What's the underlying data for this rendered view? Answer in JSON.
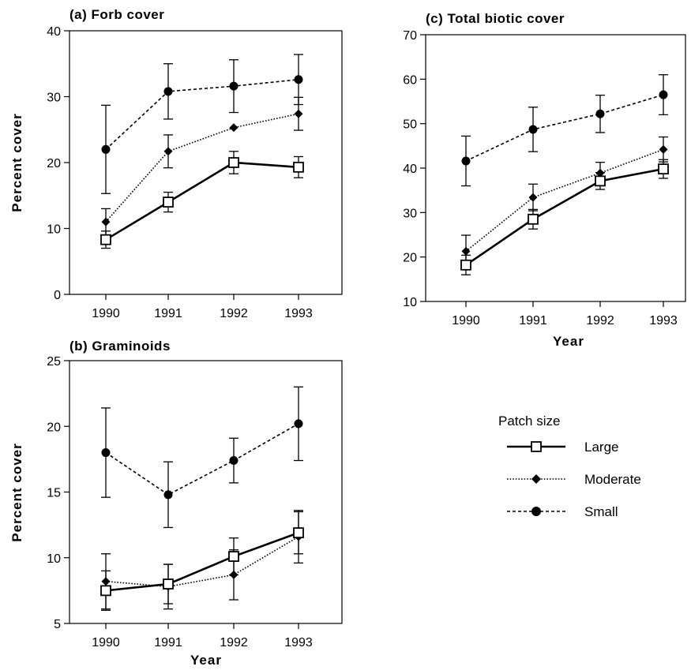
{
  "chart_data": [
    {
      "type": "line",
      "title": "(a) Forb cover",
      "xlabel": "",
      "ylabel": "Percent cover",
      "categories": [
        "1990",
        "1991",
        "1992",
        "1993"
      ],
      "ylim": [
        0,
        40
      ],
      "yticks": [
        0,
        10,
        20,
        30,
        40
      ],
      "series": [
        {
          "name": "Large",
          "values": [
            8.3,
            14.0,
            20.0,
            19.3
          ],
          "err": [
            1.3,
            1.5,
            1.7,
            1.6
          ]
        },
        {
          "name": "Moderate",
          "values": [
            11.0,
            21.7,
            25.3,
            27.4
          ],
          "err": [
            2.0,
            2.5,
            0.0,
            2.5
          ]
        },
        {
          "name": "Small",
          "values": [
            22.0,
            30.8,
            31.6,
            32.6
          ],
          "err": [
            6.7,
            4.2,
            4.0,
            3.8
          ]
        }
      ]
    },
    {
      "type": "line",
      "title": "(b) Graminoids",
      "xlabel": "Year",
      "ylabel": "Percent cover",
      "categories": [
        "1990",
        "1991",
        "1992",
        "1993"
      ],
      "ylim": [
        5,
        25
      ],
      "yticks": [
        5,
        10,
        15,
        20,
        25
      ],
      "series": [
        {
          "name": "Large",
          "values": [
            7.5,
            8.0,
            10.1,
            11.9
          ],
          "err": [
            1.5,
            1.5,
            1.4,
            1.6
          ]
        },
        {
          "name": "Moderate",
          "values": [
            8.2,
            7.8,
            8.7,
            11.6
          ],
          "err": [
            2.1,
            1.7,
            1.9,
            2.0
          ]
        },
        {
          "name": "Small",
          "values": [
            18.0,
            14.8,
            17.4,
            20.2
          ],
          "err": [
            3.4,
            2.5,
            1.7,
            2.8
          ]
        }
      ]
    },
    {
      "type": "line",
      "title": "(c) Total biotic cover",
      "xlabel": "Year",
      "ylabel": "",
      "categories": [
        "1990",
        "1991",
        "1992",
        "1993"
      ],
      "ylim": [
        10,
        70
      ],
      "yticks": [
        10,
        20,
        30,
        40,
        50,
        60,
        70
      ],
      "series": [
        {
          "name": "Large",
          "values": [
            18.2,
            28.5,
            37.1,
            39.8
          ],
          "err": [
            2.2,
            2.2,
            1.9,
            2.1
          ]
        },
        {
          "name": "Moderate",
          "values": [
            21.3,
            33.4,
            38.9,
            44.2
          ],
          "err": [
            3.6,
            3.0,
            2.4,
            2.8
          ]
        },
        {
          "name": "Small",
          "values": [
            41.6,
            48.7,
            52.2,
            56.5
          ],
          "err": [
            5.6,
            5.0,
            4.2,
            4.5
          ]
        }
      ]
    }
  ],
  "legend": {
    "title": "Patch size",
    "items": [
      {
        "name": "Large",
        "style": "solid",
        "marker": "square-open"
      },
      {
        "name": "Moderate",
        "style": "dotted",
        "marker": "diamond-filled"
      },
      {
        "name": "Small",
        "style": "dashed",
        "marker": "circle-filled"
      }
    ]
  },
  "colors": {
    "ink": "#000000",
    "background": "#ffffff"
  }
}
